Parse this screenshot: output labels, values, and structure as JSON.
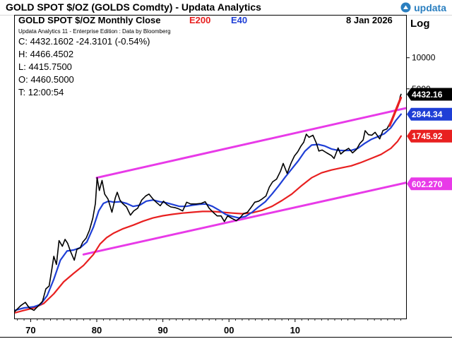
{
  "header": {
    "title": "GOLD SPOT $/OZ (GOLDS Comdty) - Updata Analytics",
    "logo_text": "updata"
  },
  "chart_header": {
    "name": "GOLD SPOT $/OZ Monthly Close",
    "e200": "E200",
    "e40": "E40",
    "date": "8 Jan 2026",
    "scale": "Log",
    "subtitle": "Updata Analytics 11 - Enterprise Edition : Data by Bloomberg"
  },
  "ohlc": {
    "close": "C: 4432.1602  -24.3101 (-0.54%)",
    "high": "H: 4466.4502",
    "low": "L: 4415.7500",
    "open": "O: 4460.5000",
    "time": "T: 12:00:54"
  },
  "colors": {
    "price": "#000000",
    "e40": "#1f3fd6",
    "e200": "#e82020",
    "channel": "#e83ae8",
    "e200_label": "#e82020",
    "e40_label": "#1f3fd6",
    "accent": "#2a7fc0"
  },
  "chart_data": {
    "type": "line",
    "y_scale": "log",
    "ylim": [
      30,
      26000
    ],
    "xlim": [
      1967.5,
      2026.9
    ],
    "x_ticks": [
      {
        "x": 1970,
        "label": "70"
      },
      {
        "x": 1980,
        "label": "80"
      },
      {
        "x": 1990,
        "label": "90"
      },
      {
        "x": 2000,
        "label": "00"
      },
      {
        "x": 2010,
        "label": "10"
      }
    ],
    "y_ticks": [
      {
        "value": 10000,
        "label": "10000"
      },
      {
        "value": 5000,
        "label": "5000"
      }
    ],
    "price_tags": [
      {
        "value": 4432.16,
        "label": "4432.16",
        "color": "#000000"
      },
      {
        "value": 2844.34,
        "label": "2844.34",
        "color": "#1f3fd6"
      },
      {
        "value": 1745.92,
        "label": "1745.92",
        "color": "#e82020"
      },
      {
        "value": 602.27,
        "label": "602.270",
        "color": "#e83ae8"
      }
    ],
    "series": [
      {
        "name": "GOLD SPOT $/OZ",
        "color": "#000000",
        "points": [
          [
            1967.6,
            35
          ],
          [
            1968.5,
            40
          ],
          [
            1969.2,
            43
          ],
          [
            1969.8,
            38
          ],
          [
            1970.5,
            36
          ],
          [
            1971.2,
            40
          ],
          [
            1971.8,
            44
          ],
          [
            1972.3,
            58
          ],
          [
            1972.8,
            62
          ],
          [
            1973.2,
            90
          ],
          [
            1973.5,
            120
          ],
          [
            1973.9,
            100
          ],
          [
            1974.3,
            170
          ],
          [
            1974.8,
            150
          ],
          [
            1975.2,
            175
          ],
          [
            1975.6,
            160
          ],
          [
            1976.0,
            135
          ],
          [
            1976.6,
            110
          ],
          [
            1977.0,
            140
          ],
          [
            1977.5,
            145
          ],
          [
            1977.9,
            165
          ],
          [
            1978.4,
            180
          ],
          [
            1978.9,
            215
          ],
          [
            1979.4,
            280
          ],
          [
            1979.8,
            390
          ],
          [
            1980.05,
            690
          ],
          [
            1980.4,
            520
          ],
          [
            1980.8,
            650
          ],
          [
            1981.2,
            480
          ],
          [
            1981.7,
            430
          ],
          [
            1982.3,
            320
          ],
          [
            1982.8,
            440
          ],
          [
            1983.1,
            500
          ],
          [
            1983.5,
            420
          ],
          [
            1983.9,
            390
          ],
          [
            1984.5,
            360
          ],
          [
            1985.1,
            300
          ],
          [
            1985.6,
            330
          ],
          [
            1986.2,
            350
          ],
          [
            1986.8,
            420
          ],
          [
            1987.4,
            460
          ],
          [
            1987.9,
            480
          ],
          [
            1988.5,
            430
          ],
          [
            1989.0,
            400
          ],
          [
            1989.6,
            370
          ],
          [
            1990.1,
            410
          ],
          [
            1990.6,
            380
          ],
          [
            1991.2,
            360
          ],
          [
            1991.8,
            355
          ],
          [
            1992.4,
            345
          ],
          [
            1993.0,
            330
          ],
          [
            1993.6,
            400
          ],
          [
            1994.2,
            385
          ],
          [
            1995.0,
            385
          ],
          [
            1995.8,
            390
          ],
          [
            1996.4,
            405
          ],
          [
            1997.0,
            350
          ],
          [
            1997.6,
            320
          ],
          [
            1998.2,
            295
          ],
          [
            1998.8,
            295
          ],
          [
            1999.3,
            260
          ],
          [
            1999.8,
            295
          ],
          [
            2000.4,
            280
          ],
          [
            2001.1,
            265
          ],
          [
            2001.6,
            280
          ],
          [
            2002.2,
            310
          ],
          [
            2002.8,
            320
          ],
          [
            2003.4,
            360
          ],
          [
            2003.9,
            400
          ],
          [
            2004.5,
            410
          ],
          [
            2005.0,
            430
          ],
          [
            2005.6,
            460
          ],
          [
            2006.1,
            560
          ],
          [
            2006.6,
            630
          ],
          [
            2007.2,
            670
          ],
          [
            2007.8,
            800
          ],
          [
            2008.2,
            950
          ],
          [
            2008.8,
            760
          ],
          [
            2009.4,
            960
          ],
          [
            2009.9,
            1120
          ],
          [
            2010.4,
            1230
          ],
          [
            2010.9,
            1400
          ],
          [
            2011.3,
            1520
          ],
          [
            2011.7,
            1820
          ],
          [
            2012.1,
            1700
          ],
          [
            2012.7,
            1780
          ],
          [
            2013.2,
            1500
          ],
          [
            2013.6,
            1250
          ],
          [
            2014.1,
            1280
          ],
          [
            2014.8,
            1200
          ],
          [
            2015.5,
            1130
          ],
          [
            2015.9,
            1060
          ],
          [
            2016.5,
            1340
          ],
          [
            2016.9,
            1170
          ],
          [
            2017.5,
            1260
          ],
          [
            2018.1,
            1330
          ],
          [
            2018.7,
            1200
          ],
          [
            2019.3,
            1300
          ],
          [
            2019.8,
            1480
          ],
          [
            2020.3,
            1600
          ],
          [
            2020.6,
            1970
          ],
          [
            2021.1,
            1800
          ],
          [
            2021.6,
            1780
          ],
          [
            2022.1,
            1900
          ],
          [
            2022.8,
            1640
          ],
          [
            2023.3,
            1980
          ],
          [
            2023.9,
            2050
          ],
          [
            2024.3,
            2300
          ],
          [
            2024.8,
            2650
          ],
          [
            2025.2,
            3000
          ],
          [
            2025.6,
            3400
          ],
          [
            2025.9,
            4200
          ],
          [
            2026.03,
            4432
          ]
        ]
      },
      {
        "name": "E40",
        "color": "#1f3fd6",
        "points": [
          [
            1967.6,
            36
          ],
          [
            1969.0,
            38
          ],
          [
            1970.5,
            39
          ],
          [
            1971.5,
            41
          ],
          [
            1972.5,
            50
          ],
          [
            1973.5,
            72
          ],
          [
            1974.5,
            110
          ],
          [
            1975.5,
            135
          ],
          [
            1976.5,
            138
          ],
          [
            1977.5,
            145
          ],
          [
            1978.5,
            165
          ],
          [
            1979.5,
            230
          ],
          [
            1980.3,
            330
          ],
          [
            1981.0,
            390
          ],
          [
            1981.8,
            410
          ],
          [
            1982.6,
            400
          ],
          [
            1983.5,
            405
          ],
          [
            1984.5,
            390
          ],
          [
            1985.5,
            365
          ],
          [
            1986.5,
            375
          ],
          [
            1987.5,
            410
          ],
          [
            1988.5,
            420
          ],
          [
            1989.5,
            405
          ],
          [
            1990.5,
            395
          ],
          [
            1991.5,
            380
          ],
          [
            1992.5,
            365
          ],
          [
            1993.5,
            365
          ],
          [
            1994.5,
            375
          ],
          [
            1995.5,
            382
          ],
          [
            1996.5,
            385
          ],
          [
            1997.5,
            365
          ],
          [
            1998.5,
            335
          ],
          [
            1999.5,
            305
          ],
          [
            2000.5,
            292
          ],
          [
            2001.5,
            282
          ],
          [
            2002.5,
            292
          ],
          [
            2003.5,
            320
          ],
          [
            2004.5,
            362
          ],
          [
            2005.5,
            405
          ],
          [
            2006.5,
            480
          ],
          [
            2007.5,
            575
          ],
          [
            2008.5,
            700
          ],
          [
            2009.5,
            840
          ],
          [
            2010.5,
            1010
          ],
          [
            2011.5,
            1250
          ],
          [
            2012.5,
            1430
          ],
          [
            2013.5,
            1450
          ],
          [
            2014.5,
            1400
          ],
          [
            2015.5,
            1310
          ],
          [
            2016.5,
            1270
          ],
          [
            2017.5,
            1265
          ],
          [
            2018.5,
            1270
          ],
          [
            2019.5,
            1330
          ],
          [
            2020.5,
            1480
          ],
          [
            2021.5,
            1620
          ],
          [
            2022.5,
            1720
          ],
          [
            2023.5,
            1840
          ],
          [
            2024.5,
            2100
          ],
          [
            2025.3,
            2500
          ],
          [
            2026.03,
            2844
          ]
        ]
      },
      {
        "name": "E200",
        "color": "#e82020",
        "points": [
          [
            1967.6,
            34
          ],
          [
            1969.0,
            36
          ],
          [
            1970.5,
            38
          ],
          [
            1972.0,
            42
          ],
          [
            1973.5,
            52
          ],
          [
            1975.0,
            68
          ],
          [
            1976.5,
            82
          ],
          [
            1978.0,
            98
          ],
          [
            1979.5,
            125
          ],
          [
            1980.5,
            158
          ],
          [
            1981.5,
            182
          ],
          [
            1982.5,
            200
          ],
          [
            1984.0,
            222
          ],
          [
            1985.5,
            240
          ],
          [
            1987.0,
            262
          ],
          [
            1988.5,
            282
          ],
          [
            1990.0,
            296
          ],
          [
            1991.5,
            306
          ],
          [
            1993.0,
            314
          ],
          [
            1994.5,
            320
          ],
          [
            1996.0,
            326
          ],
          [
            1997.5,
            326
          ],
          [
            1999.0,
            320
          ],
          [
            2000.5,
            314
          ],
          [
            2002.0,
            310
          ],
          [
            2003.5,
            316
          ],
          [
            2005.0,
            334
          ],
          [
            2006.5,
            365
          ],
          [
            2008.0,
            415
          ],
          [
            2009.5,
            480
          ],
          [
            2011.0,
            580
          ],
          [
            2012.5,
            690
          ],
          [
            2014.0,
            770
          ],
          [
            2015.5,
            820
          ],
          [
            2017.0,
            860
          ],
          [
            2018.5,
            900
          ],
          [
            2020.0,
            970
          ],
          [
            2021.5,
            1060
          ],
          [
            2023.0,
            1160
          ],
          [
            2024.5,
            1330
          ],
          [
            2025.5,
            1550
          ],
          [
            2026.03,
            1745.92
          ]
        ]
      },
      {
        "name": "Channel Upper",
        "color": "#e83ae8",
        "points": [
          [
            1980.0,
            690
          ],
          [
            2026.9,
            3270
          ]
        ]
      },
      {
        "name": "Channel Lower",
        "color": "#e83ae8",
        "points": [
          [
            1978.0,
            125
          ],
          [
            2026.9,
            620
          ]
        ]
      },
      {
        "name": "Trend Arrow",
        "color": "#e82020",
        "points": [
          [
            2024.3,
            2200
          ],
          [
            2026.0,
            4100
          ]
        ]
      }
    ]
  }
}
